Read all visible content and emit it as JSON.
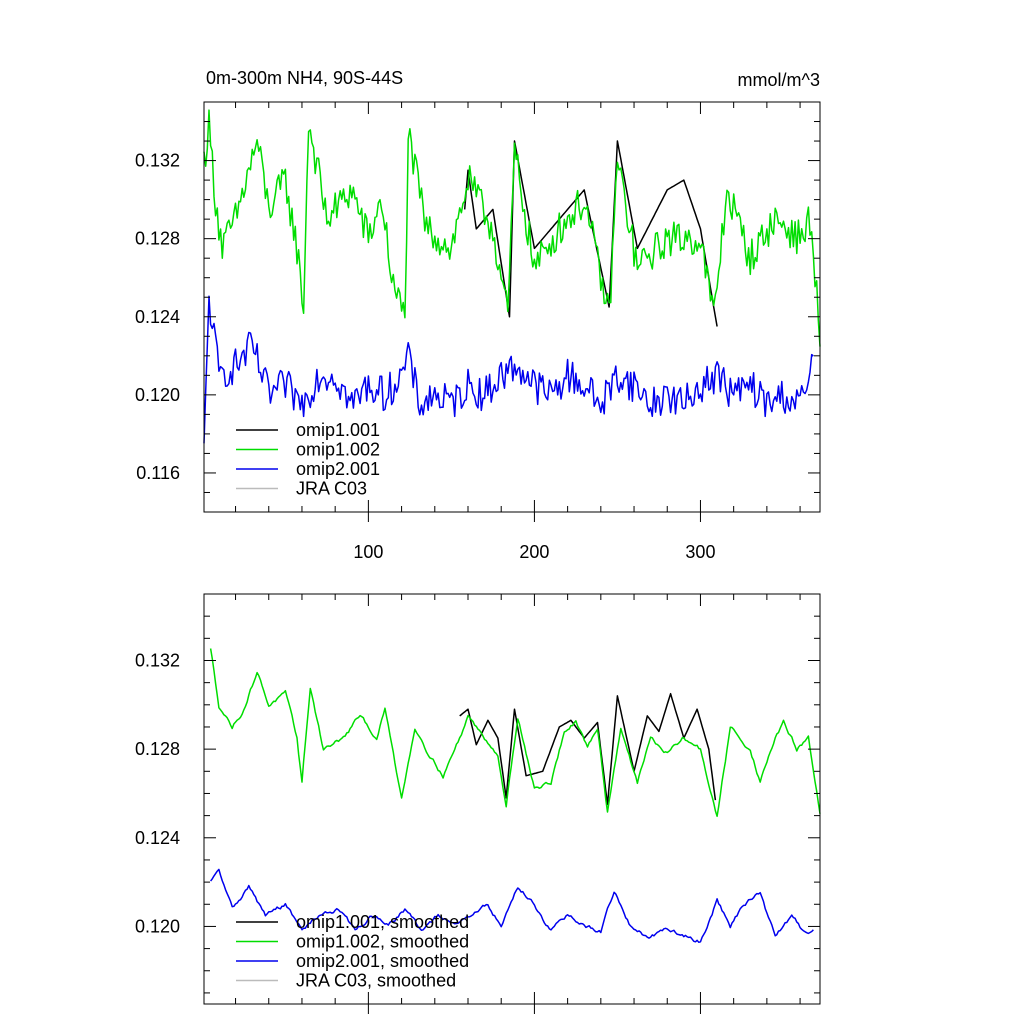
{
  "chart_data": [
    {
      "type": "line",
      "title": "0m-300m NH4, 90S-44S",
      "units": "mmol/m^3",
      "xlim": [
        1,
        372
      ],
      "ylim": [
        0.114,
        0.135
      ],
      "x_ticks": [
        100,
        200,
        300
      ],
      "y_ticks": [
        0.116,
        0.12,
        0.124,
        0.128,
        0.132
      ],
      "y_tick_labels": [
        "0.116",
        "0.120",
        "0.124",
        "0.128",
        "0.132"
      ],
      "x_tick_labels": [
        "100",
        "200",
        "300"
      ],
      "legend_placement": "bottom-left",
      "series": [
        {
          "name": "omip1.001",
          "color": "#000000",
          "keypoints": [
            [
              158,
              0.1295
            ],
            [
              160,
              0.1315
            ],
            [
              165,
              0.1285
            ],
            [
              175,
              0.1295
            ],
            [
              185,
              0.124
            ],
            [
              188,
              0.133
            ],
            [
              200,
              0.1275
            ],
            [
              215,
              0.129
            ],
            [
              230,
              0.1305
            ],
            [
              245,
              0.1245
            ],
            [
              250,
              0.133
            ],
            [
              262,
              0.1275
            ],
            [
              280,
              0.1305
            ],
            [
              290,
              0.131
            ],
            [
              300,
              0.1285
            ],
            [
              306,
              0.1255
            ],
            [
              310,
              0.1235
            ]
          ]
        },
        {
          "name": "omip1.002",
          "color": "#00dd00",
          "keypoints": [
            [
              1,
              0.132
            ],
            [
              4,
              0.1338
            ],
            [
              8,
              0.13
            ],
            [
              12,
              0.1275
            ],
            [
              20,
              0.129
            ],
            [
              33,
              0.133
            ],
            [
              40,
              0.1295
            ],
            [
              50,
              0.131
            ],
            [
              57,
              0.1275
            ],
            [
              61,
              0.1245
            ],
            [
              64,
              0.134
            ],
            [
              75,
              0.129
            ],
            [
              90,
              0.1305
            ],
            [
              100,
              0.128
            ],
            [
              108,
              0.13
            ],
            [
              115,
              0.1255
            ],
            [
              122,
              0.124
            ],
            [
              124,
              0.1333
            ],
            [
              135,
              0.1285
            ],
            [
              150,
              0.1275
            ],
            [
              160,
              0.131
            ],
            [
              175,
              0.1285
            ],
            [
              184,
              0.124
            ],
            [
              188,
              0.1325
            ],
            [
              200,
              0.1265
            ],
            [
              215,
              0.1285
            ],
            [
              230,
              0.13
            ],
            [
              245,
              0.124
            ],
            [
              250,
              0.132
            ],
            [
              262,
              0.1265
            ],
            [
              280,
              0.128
            ],
            [
              300,
              0.128
            ],
            [
              308,
              0.124
            ],
            [
              316,
              0.1305
            ],
            [
              330,
              0.127
            ],
            [
              345,
              0.129
            ],
            [
              360,
              0.128
            ],
            [
              366,
              0.129
            ],
            [
              372,
              0.123
            ]
          ]
        },
        {
          "name": "omip2.001",
          "color": "#0000ee",
          "keypoints": [
            [
              1,
              0.117
            ],
            [
              4,
              0.125
            ],
            [
              10,
              0.121
            ],
            [
              20,
              0.1215
            ],
            [
              30,
              0.1225
            ],
            [
              40,
              0.12
            ],
            [
              50,
              0.1205
            ],
            [
              60,
              0.1195
            ],
            [
              70,
              0.121
            ],
            [
              80,
              0.121
            ],
            [
              90,
              0.1195
            ],
            [
              100,
              0.1205
            ],
            [
              110,
              0.12
            ],
            [
              120,
              0.121
            ],
            [
              125,
              0.122
            ],
            [
              130,
              0.1195
            ],
            [
              140,
              0.12
            ],
            [
              150,
              0.1195
            ],
            [
              160,
              0.1205
            ],
            [
              170,
              0.12
            ],
            [
              180,
              0.121
            ],
            [
              190,
              0.1215
            ],
            [
              200,
              0.1205
            ],
            [
              210,
              0.12
            ],
            [
              220,
              0.121
            ],
            [
              230,
              0.1205
            ],
            [
              240,
              0.1195
            ],
            [
              250,
              0.121
            ],
            [
              260,
              0.1205
            ],
            [
              270,
              0.1195
            ],
            [
              280,
              0.12
            ],
            [
              290,
              0.1195
            ],
            [
              300,
              0.1205
            ],
            [
              310,
              0.121
            ],
            [
              320,
              0.12
            ],
            [
              330,
              0.1205
            ],
            [
              340,
              0.1195
            ],
            [
              350,
              0.12
            ],
            [
              360,
              0.1195
            ],
            [
              368,
              0.1215
            ]
          ]
        },
        {
          "name": "JRA C03",
          "color": "#bbbbbb",
          "keypoints": []
        }
      ]
    },
    {
      "type": "line",
      "xlim": [
        1,
        372
      ],
      "ylim": [
        0.1165,
        0.135
      ],
      "x_ticks": [
        100,
        200,
        300
      ],
      "y_ticks": [
        0.12,
        0.124,
        0.128,
        0.132
      ],
      "y_tick_labels": [
        "0.120",
        "0.124",
        "0.128",
        "0.132"
      ],
      "legend_placement": "bottom-left",
      "series": [
        {
          "name": "omip1.001, smoothed",
          "color": "#000000",
          "keypoints": [
            [
              155,
              0.1295
            ],
            [
              160,
              0.1298
            ],
            [
              165,
              0.1282
            ],
            [
              172,
              0.1293
            ],
            [
              178,
              0.1285
            ],
            [
              183,
              0.1258
            ],
            [
              188,
              0.1298
            ],
            [
              195,
              0.1268
            ],
            [
              205,
              0.127
            ],
            [
              215,
              0.129
            ],
            [
              222,
              0.1293
            ],
            [
              230,
              0.1285
            ],
            [
              238,
              0.1292
            ],
            [
              244,
              0.1255
            ],
            [
              250,
              0.1304
            ],
            [
              260,
              0.127
            ],
            [
              268,
              0.1295
            ],
            [
              275,
              0.1288
            ],
            [
              282,
              0.1305
            ],
            [
              290,
              0.1285
            ],
            [
              298,
              0.1298
            ],
            [
              305,
              0.128
            ],
            [
              309,
              0.1257
            ]
          ]
        },
        {
          "name": "omip1.002, smoothed",
          "color": "#00dd00",
          "keypoints": [
            [
              5,
              0.1325
            ],
            [
              10,
              0.13
            ],
            [
              18,
              0.129
            ],
            [
              25,
              0.1298
            ],
            [
              33,
              0.1315
            ],
            [
              40,
              0.13
            ],
            [
              50,
              0.1305
            ],
            [
              57,
              0.1285
            ],
            [
              60,
              0.1265
            ],
            [
              65,
              0.1308
            ],
            [
              73,
              0.128
            ],
            [
              85,
              0.1285
            ],
            [
              95,
              0.1295
            ],
            [
              105,
              0.1285
            ],
            [
              110,
              0.1298
            ],
            [
              120,
              0.1258
            ],
            [
              128,
              0.129
            ],
            [
              135,
              0.128
            ],
            [
              145,
              0.1268
            ],
            [
              155,
              0.1285
            ],
            [
              160,
              0.1295
            ],
            [
              170,
              0.1285
            ],
            [
              178,
              0.1278
            ],
            [
              183,
              0.1254
            ],
            [
              190,
              0.1295
            ],
            [
              200,
              0.1262
            ],
            [
              210,
              0.1265
            ],
            [
              218,
              0.1288
            ],
            [
              225,
              0.1292
            ],
            [
              232,
              0.128
            ],
            [
              238,
              0.129
            ],
            [
              244,
              0.1252
            ],
            [
              252,
              0.129
            ],
            [
              262,
              0.1265
            ],
            [
              270,
              0.1285
            ],
            [
              280,
              0.1278
            ],
            [
              290,
              0.1285
            ],
            [
              300,
              0.128
            ],
            [
              310,
              0.1249
            ],
            [
              318,
              0.129
            ],
            [
              330,
              0.128
            ],
            [
              336,
              0.1265
            ],
            [
              345,
              0.1285
            ],
            [
              350,
              0.1292
            ],
            [
              358,
              0.128
            ],
            [
              365,
              0.1285
            ],
            [
              372,
              0.1251
            ]
          ]
        },
        {
          "name": "omip2.001, smoothed",
          "color": "#0000ee",
          "keypoints": [
            [
              5,
              0.122
            ],
            [
              10,
              0.1225
            ],
            [
              18,
              0.1208
            ],
            [
              28,
              0.1218
            ],
            [
              38,
              0.1205
            ],
            [
              50,
              0.121
            ],
            [
              60,
              0.1198
            ],
            [
              70,
              0.1205
            ],
            [
              82,
              0.1208
            ],
            [
              92,
              0.1198
            ],
            [
              102,
              0.1205
            ],
            [
              112,
              0.12
            ],
            [
              122,
              0.1208
            ],
            [
              132,
              0.1198
            ],
            [
              142,
              0.1205
            ],
            [
              152,
              0.12
            ],
            [
              162,
              0.1205
            ],
            [
              172,
              0.121
            ],
            [
              180,
              0.12
            ],
            [
              190,
              0.1218
            ],
            [
              200,
              0.121
            ],
            [
              210,
              0.1198
            ],
            [
              220,
              0.1205
            ],
            [
              230,
              0.12
            ],
            [
              240,
              0.1198
            ],
            [
              248,
              0.1216
            ],
            [
              258,
              0.12
            ],
            [
              268,
              0.1195
            ],
            [
              278,
              0.1198
            ],
            [
              290,
              0.1196
            ],
            [
              300,
              0.1193
            ],
            [
              310,
              0.1212
            ],
            [
              318,
              0.12
            ],
            [
              326,
              0.121
            ],
            [
              336,
              0.1215
            ],
            [
              345,
              0.1195
            ],
            [
              355,
              0.1205
            ],
            [
              362,
              0.1198
            ],
            [
              368,
              0.1198
            ]
          ]
        },
        {
          "name": "JRA C03, smoothed",
          "color": "#bbbbbb",
          "keypoints": []
        }
      ]
    }
  ]
}
